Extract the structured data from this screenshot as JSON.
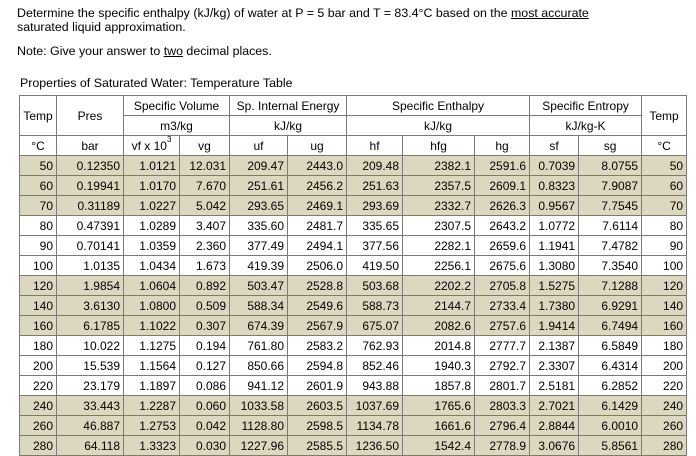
{
  "question": {
    "line1_a": "Determine the specific enthalpy (kJ/kg) of water at P = 5 bar and T = 83.4°C based on the ",
    "line1_link": "most accurate",
    "line2": "saturated liquid approximation.",
    "note_a": "Note: Give your answer to ",
    "note_link": "two",
    "note_b": " decimal places."
  },
  "table": {
    "caption": "Properties of Saturated Water: Temperature Table",
    "headers": {
      "temp": "Temp",
      "temp_unit": "°C",
      "pres": "Pres",
      "pres_unit": "bar",
      "spec_vol": "Specific Volume",
      "spec_vol_unit": "m3/kg",
      "int_energy": "Sp. Internal Energy",
      "int_energy_unit": "kJ/kg",
      "enthalpy": "Specific Enthalpy",
      "enthalpy_unit": "kJ/kg",
      "entropy": "Specific Entropy",
      "entropy_unit": "kJ/kg-K",
      "vf_a": "vf x 10",
      "vf_exp": "3",
      "vg": "vg",
      "uf": "uf",
      "ug": "ug",
      "hf": "hf",
      "hfg": "hfg",
      "hg": "hg",
      "sf": "sf",
      "sg": "sg"
    },
    "rows": [
      [
        "50",
        "0.12350",
        "1.0121",
        "12.031",
        "209.47",
        "2443.0",
        "209.48",
        "2382.1",
        "2591.6",
        "0.7039",
        "8.0755",
        "50"
      ],
      [
        "60",
        "0.19941",
        "1.0170",
        "7.670",
        "251.61",
        "2456.2",
        "251.63",
        "2357.5",
        "2609.1",
        "0.8323",
        "7.9087",
        "60"
      ],
      [
        "70",
        "0.31189",
        "1.0227",
        "5.042",
        "293.65",
        "2469.1",
        "293.69",
        "2332.7",
        "2626.3",
        "0.9567",
        "7.7545",
        "70"
      ],
      [
        "80",
        "0.47391",
        "1.0289",
        "3.407",
        "335.60",
        "2481.7",
        "335.65",
        "2307.5",
        "2643.2",
        "1.0772",
        "7.6114",
        "80"
      ],
      [
        "90",
        "0.70141",
        "1.0359",
        "2.360",
        "377.49",
        "2494.1",
        "377.56",
        "2282.1",
        "2659.6",
        "1.1941",
        "7.4782",
        "90"
      ],
      [
        "100",
        "1.0135",
        "1.0434",
        "1.673",
        "419.39",
        "2506.0",
        "419.50",
        "2256.1",
        "2675.6",
        "1.3080",
        "7.3540",
        "100"
      ],
      [
        "120",
        "1.9854",
        "1.0604",
        "0.892",
        "503.47",
        "2528.8",
        "503.68",
        "2202.2",
        "2705.8",
        "1.5275",
        "7.1288",
        "120"
      ],
      [
        "140",
        "3.6130",
        "1.0800",
        "0.509",
        "588.34",
        "2549.6",
        "588.73",
        "2144.7",
        "2733.4",
        "1.7380",
        "6.9291",
        "140"
      ],
      [
        "160",
        "6.1785",
        "1.1022",
        "0.307",
        "674.39",
        "2567.9",
        "675.07",
        "2082.6",
        "2757.6",
        "1.9414",
        "6.7494",
        "160"
      ],
      [
        "180",
        "10.022",
        "1.1275",
        "0.194",
        "761.80",
        "2583.2",
        "762.93",
        "2014.8",
        "2777.7",
        "2.1387",
        "6.5849",
        "180"
      ],
      [
        "200",
        "15.539",
        "1.1564",
        "0.127",
        "850.66",
        "2594.8",
        "852.46",
        "1940.3",
        "2792.7",
        "2.3307",
        "6.4314",
        "200"
      ],
      [
        "220",
        "23.179",
        "1.1897",
        "0.086",
        "941.12",
        "2601.9",
        "943.88",
        "1857.8",
        "2801.7",
        "2.5181",
        "6.2852",
        "220"
      ],
      [
        "240",
        "33.443",
        "1.2287",
        "0.060",
        "1033.58",
        "2603.5",
        "1037.69",
        "1765.6",
        "2803.3",
        "2.7021",
        "6.1429",
        "240"
      ],
      [
        "260",
        "46.887",
        "1.2753",
        "0.042",
        "1128.80",
        "2598.5",
        "1134.78",
        "1661.6",
        "2796.4",
        "2.8844",
        "6.0010",
        "260"
      ],
      [
        "280",
        "64.118",
        "1.3323",
        "0.030",
        "1227.96",
        "2585.5",
        "1236.50",
        "1542.4",
        "2778.9",
        "3.0676",
        "5.8561",
        "280"
      ]
    ]
  }
}
